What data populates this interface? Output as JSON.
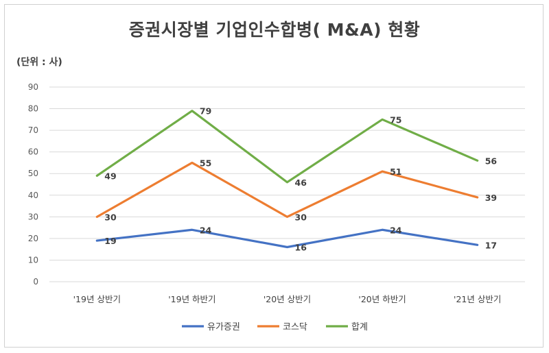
{
  "chart_data": {
    "type": "line",
    "title": "증권시장별 기업인수합병( M&A) 현황",
    "unit_label": "(단위 : 사)",
    "categories": [
      "'19년 상반기",
      "'19년 하반기",
      "'20년 상반기",
      "'20년 하반기",
      "'21년 상반기"
    ],
    "ylim": [
      0,
      90
    ],
    "yticks": [
      0,
      10,
      20,
      30,
      40,
      50,
      60,
      70,
      80,
      90
    ],
    "grid": true,
    "legend_position": "bottom",
    "series": [
      {
        "name": "유가증권",
        "color": "#4472c4",
        "values": [
          19,
          24,
          16,
          24,
          17
        ]
      },
      {
        "name": "코스닥",
        "color": "#ed7d31",
        "values": [
          30,
          55,
          30,
          51,
          39
        ]
      },
      {
        "name": "합계",
        "color": "#70ad47",
        "values": [
          49,
          79,
          46,
          75,
          56
        ]
      }
    ]
  }
}
